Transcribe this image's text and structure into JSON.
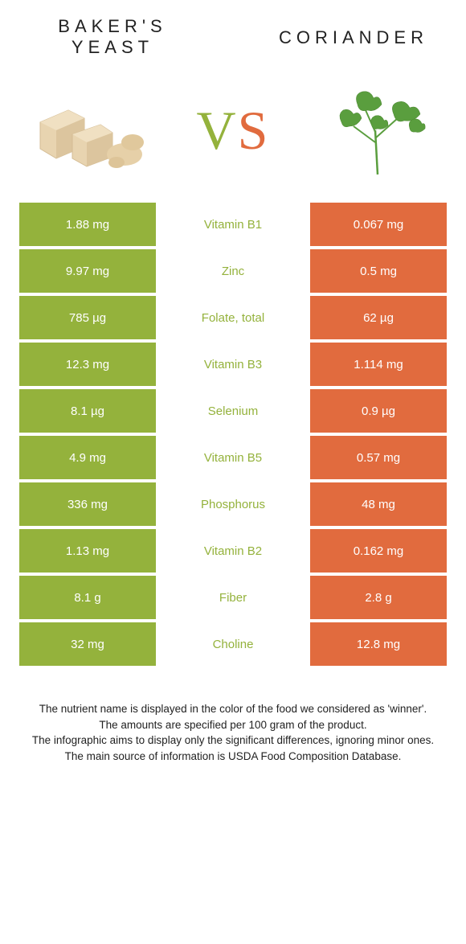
{
  "header": {
    "left_title": "BAKER'S YEAST",
    "right_title": "CORIANDER",
    "vs_v": "V",
    "vs_s": "S"
  },
  "colors": {
    "left": "#94b23c",
    "right": "#e16b3e",
    "background": "#ffffff",
    "text": "#222222"
  },
  "table": {
    "rows": [
      {
        "left": "1.88 mg",
        "mid": "Vitamin B1",
        "right": "0.067 mg",
        "winner": "left"
      },
      {
        "left": "9.97 mg",
        "mid": "Zinc",
        "right": "0.5 mg",
        "winner": "left"
      },
      {
        "left": "785 µg",
        "mid": "Folate, total",
        "right": "62 µg",
        "winner": "left"
      },
      {
        "left": "12.3 mg",
        "mid": "Vitamin B3",
        "right": "1.114 mg",
        "winner": "left"
      },
      {
        "left": "8.1 µg",
        "mid": "Selenium",
        "right": "0.9 µg",
        "winner": "left"
      },
      {
        "left": "4.9 mg",
        "mid": "Vitamin B5",
        "right": "0.57 mg",
        "winner": "left"
      },
      {
        "left": "336 mg",
        "mid": "Phosphorus",
        "right": "48 mg",
        "winner": "left"
      },
      {
        "left": "1.13 mg",
        "mid": "Vitamin B2",
        "right": "0.162 mg",
        "winner": "left"
      },
      {
        "left": "8.1 g",
        "mid": "Fiber",
        "right": "2.8 g",
        "winner": "left"
      },
      {
        "left": "32 mg",
        "mid": "Choline",
        "right": "12.8 mg",
        "winner": "left"
      }
    ]
  },
  "footer": {
    "line1": "The nutrient name is displayed in the color of the food we considered as 'winner'.",
    "line2": "The amounts are specified per 100 gram of the product.",
    "line3": "The infographic aims to display only the significant differences, ignoring minor ones.",
    "line4": "The main source of information is USDA Food Composition Database."
  }
}
